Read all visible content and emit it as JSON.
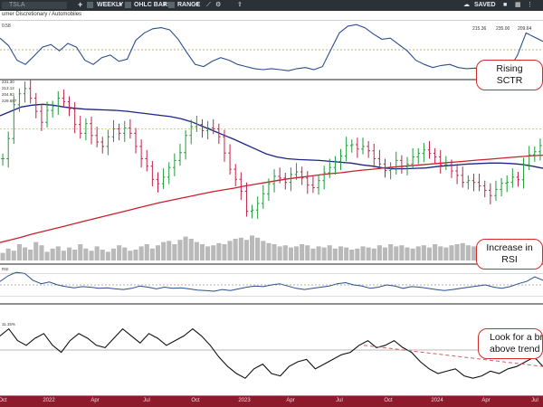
{
  "toolbar": {
    "symbol_placeholder": "TSLA",
    "period": "WEEKLY",
    "chart_type": "OHLC BARS",
    "range": "RANGE",
    "status": "SAVED",
    "plus_icon": "plus-icon",
    "chevron_icon": "chevron-down-icon"
  },
  "subheader": {
    "sector": "umer Discretionary / Automobiles"
  },
  "annotations": {
    "sctr": [
      "Rising",
      "SCTR"
    ],
    "rsi": [
      "Increase in",
      "RSI"
    ],
    "breakout": [
      "Look for a br",
      "above trend"
    ]
  },
  "chart_data": [
    {
      "panel": "sctr",
      "type": "line",
      "top_left_label": "0.58",
      "readouts": [
        "215.36",
        "235.00",
        "209.64"
      ],
      "reference_line": 50,
      "values": [
        72,
        58,
        30,
        22,
        38,
        55,
        60,
        48,
        62,
        55,
        30,
        22,
        35,
        40,
        28,
        32,
        68,
        82,
        90,
        92,
        88,
        70,
        45,
        22,
        18,
        28,
        35,
        30,
        22,
        18,
        14,
        12,
        14,
        12,
        10,
        14,
        16,
        12,
        18,
        50,
        82,
        95,
        98,
        92,
        80,
        70,
        72,
        60,
        48,
        30,
        22,
        16,
        20,
        22,
        16,
        14,
        15,
        12,
        14,
        10,
        12,
        40,
        82,
        74,
        66
      ]
    },
    {
      "panel": "price",
      "type": "ohlc",
      "ma_labels": [
        "231.30",
        "213.12",
        "204.93",
        "229.697"
      ],
      "closes": [
        232,
        278,
        355,
        380,
        392,
        370,
        340,
        315,
        342,
        352,
        370,
        362,
        345,
        310,
        290,
        312,
        285,
        270,
        260,
        282,
        300,
        290,
        302,
        290,
        260,
        232,
        215,
        185,
        175,
        190,
        212,
        228,
        246,
        285,
        305,
        310,
        296,
        302,
        300,
        282,
        245,
        208,
        185,
        158,
        112,
        115,
        130,
        152,
        175,
        192,
        188,
        178,
        196,
        202,
        188,
        172,
        166,
        182,
        200,
        212,
        226,
        238,
        262,
        264,
        254,
        260,
        250,
        232,
        220,
        205,
        208,
        228,
        214,
        220,
        236,
        244,
        252,
        244,
        236,
        218,
        218,
        204,
        194,
        178,
        182,
        178,
        170,
        160,
        148,
        162,
        176,
        178,
        190,
        184,
        218,
        241,
        248,
        262
      ],
      "series": [
        {
          "name": "50-week MA",
          "color": "#1c2586",
          "values": [
            330,
            340,
            350,
            354,
            356,
            354,
            350,
            347,
            345,
            344,
            343,
            342,
            340,
            337,
            334,
            331,
            328,
            323,
            316,
            306,
            296,
            286,
            276,
            265,
            254,
            243,
            236,
            232,
            230,
            229,
            228,
            226,
            224,
            222,
            218,
            215,
            211,
            209,
            209,
            210,
            211,
            214,
            216,
            218,
            220,
            221,
            222,
            222,
            221,
            219,
            215,
            210
          ]
        },
        {
          "name": "200-week MA",
          "color": "#c9202a",
          "values": [
            41,
            47,
            53,
            60,
            66,
            72,
            78,
            84,
            90,
            96,
            102,
            108,
            114,
            120,
            126,
            132,
            137,
            142,
            147,
            152,
            157,
            161,
            165,
            170,
            174,
            178,
            182,
            186,
            189,
            192,
            195,
            198,
            200,
            203,
            206,
            208,
            211,
            213,
            215,
            217,
            219,
            221,
            223,
            225,
            227,
            229,
            231,
            233,
            235,
            237,
            239,
            240
          ]
        }
      ],
      "volume": [
        14,
        22,
        18,
        30,
        24,
        20,
        34,
        28,
        16,
        22,
        26,
        18,
        24,
        20,
        30,
        22,
        18,
        26,
        20,
        16,
        22,
        28,
        24,
        18,
        20,
        26,
        30,
        22,
        28,
        34,
        36,
        30,
        38,
        44,
        40,
        34,
        30,
        26,
        28,
        32,
        30,
        36,
        40,
        42,
        38,
        46,
        42,
        36,
        32,
        30,
        26,
        28,
        24,
        26,
        30,
        28,
        22,
        26,
        24,
        28,
        22,
        26,
        24,
        20,
        22,
        26,
        24,
        22,
        28,
        24,
        30,
        26,
        28,
        24,
        22,
        26,
        28,
        24,
        30,
        26,
        24,
        28,
        30,
        32,
        28,
        26,
        30,
        28,
        26,
        24,
        30,
        26,
        28,
        30,
        24,
        34,
        30,
        28
      ]
    },
    {
      "panel": "rsi",
      "type": "line",
      "top_left_label": "RSI",
      "reference_line": 50,
      "values": [
        56,
        66,
        72,
        70,
        58,
        52,
        55,
        50,
        47,
        45,
        47,
        46,
        44,
        45,
        43,
        42,
        44,
        48,
        46,
        43,
        46,
        44,
        45,
        43,
        41,
        40,
        39,
        42,
        40,
        43,
        46,
        48,
        47,
        50,
        52,
        48,
        44,
        42,
        44,
        46,
        48,
        52,
        54,
        50,
        48,
        44,
        46,
        50,
        48,
        44,
        47,
        46,
        44,
        42,
        40,
        42,
        44,
        46,
        48,
        50,
        46,
        44,
        47,
        52,
        56,
        64,
        58
      ]
    },
    {
      "panel": "performance",
      "type": "line",
      "top_left_label": "11.15%",
      "reference_line": 0,
      "trendline": {
        "from": [
          0.67,
          0.2
        ],
        "to": [
          1.0,
          -0.7
        ]
      },
      "values": [
        0.6,
        0.9,
        0.4,
        0.2,
        0.5,
        0.7,
        0.2,
        -0.1,
        0.4,
        0.7,
        0.5,
        0.2,
        0.1,
        0.5,
        0.9,
        0.6,
        0.3,
        0.7,
        0.5,
        0.2,
        0.4,
        0.6,
        0.9,
        0.6,
        0.2,
        -0.3,
        -0.7,
        -1.0,
        -1.2,
        -0.8,
        -0.6,
        -1.0,
        -1.1,
        -0.7,
        -0.5,
        -0.4,
        -0.8,
        -0.6,
        -0.4,
        -0.2,
        -0.1,
        0.2,
        0.4,
        0.1,
        0.2,
        0.4,
        0.1,
        -0.1,
        -0.5,
        -0.8,
        -1.0,
        -0.9,
        -0.8,
        -1.1,
        -1.2,
        -1.1,
        -0.9,
        -1.0,
        -0.8,
        -0.7,
        -0.5,
        -0.3,
        -0.7
      ]
    }
  ],
  "x_axis": {
    "labels": [
      {
        "text": "Oct",
        "pos": 0.005
      },
      {
        "text": "2022",
        "pos": 0.09
      },
      {
        "text": "Apr",
        "pos": 0.175
      },
      {
        "text": "Jul",
        "pos": 0.27
      },
      {
        "text": "Oct",
        "pos": 0.36
      },
      {
        "text": "2023",
        "pos": 0.45
      },
      {
        "text": "Apr",
        "pos": 0.535
      },
      {
        "text": "Jul",
        "pos": 0.625
      },
      {
        "text": "Oct",
        "pos": 0.715
      },
      {
        "text": "2024",
        "pos": 0.805
      },
      {
        "text": "Apr",
        "pos": 0.895
      },
      {
        "text": "Jul",
        "pos": 0.985
      }
    ]
  }
}
